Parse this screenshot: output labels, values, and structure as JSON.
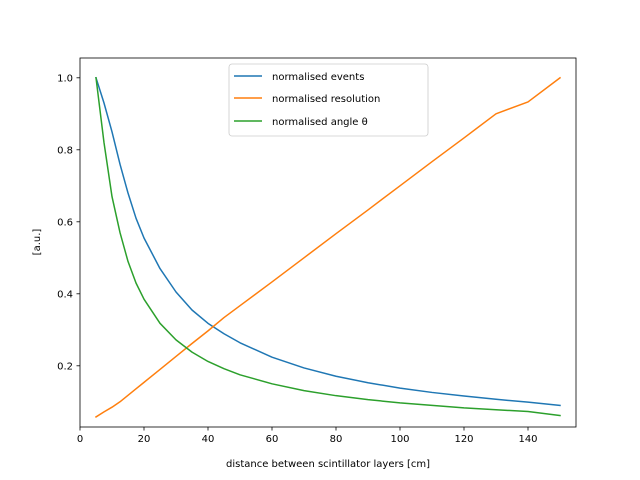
{
  "chart_data": {
    "type": "line",
    "xlabel": "distance between scintillator layers [cm]",
    "ylabel": "[a.u.]",
    "xlim": [
      0,
      155
    ],
    "ylim": [
      0.03,
      1.055
    ],
    "xticks": [
      0,
      20,
      40,
      60,
      80,
      100,
      120,
      140
    ],
    "yticks": [
      0.2,
      0.4,
      0.6,
      0.8,
      1.0
    ],
    "ytick_labels": [
      "0.2",
      "0.4",
      "0.6",
      "0.8",
      "1.0"
    ],
    "grid": false,
    "legend_position": "top-center",
    "x": [
      5,
      7.5,
      10,
      12.5,
      15,
      17.5,
      20,
      25,
      30,
      35,
      40,
      45,
      50,
      60,
      70,
      80,
      90,
      100,
      110,
      120,
      130,
      140,
      150
    ],
    "series": [
      {
        "name": "normalised events",
        "color": "#1f77b4",
        "values": [
          1.0,
          0.93,
          0.85,
          0.76,
          0.68,
          0.61,
          0.555,
          0.47,
          0.405,
          0.355,
          0.318,
          0.289,
          0.264,
          0.224,
          0.194,
          0.171,
          0.153,
          0.138,
          0.126,
          0.116,
          0.107,
          0.099,
          0.09
        ]
      },
      {
        "name": "normalised resolution",
        "color": "#ff7f0e",
        "values": [
          0.058,
          0.072,
          0.085,
          0.1,
          0.118,
          0.136,
          0.154,
          0.19,
          0.226,
          0.262,
          0.297,
          0.334,
          0.367,
          0.433,
          0.5,
          0.567,
          0.633,
          0.7,
          0.767,
          0.833,
          0.9,
          0.933,
          1.0
        ]
      },
      {
        "name": "normalised angle θ",
        "color": "#2ca02c",
        "values": [
          1.0,
          0.82,
          0.67,
          0.57,
          0.49,
          0.43,
          0.385,
          0.318,
          0.272,
          0.238,
          0.212,
          0.192,
          0.175,
          0.15,
          0.131,
          0.117,
          0.106,
          0.097,
          0.09,
          0.083,
          0.078,
          0.073,
          0.062
        ]
      }
    ]
  }
}
